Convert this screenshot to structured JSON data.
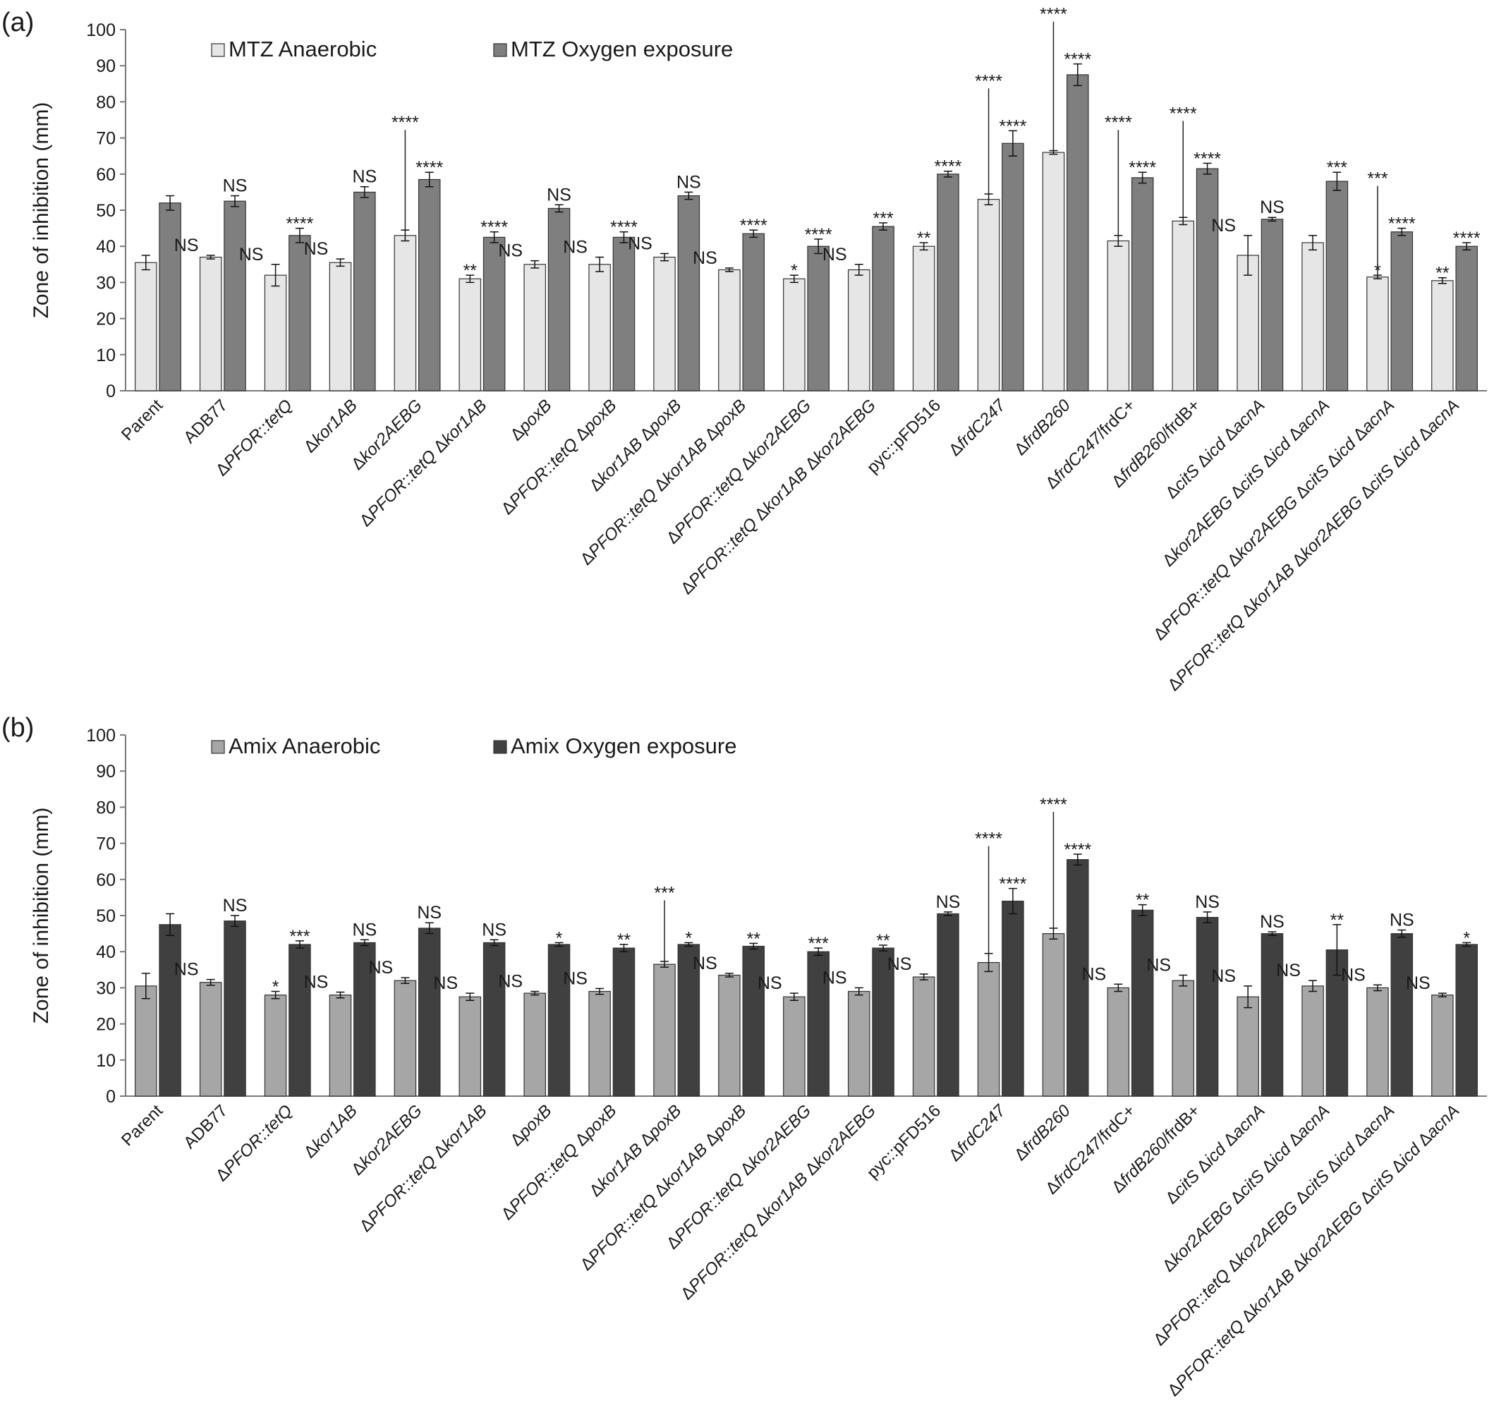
{
  "chart_data": [
    {
      "panel": "(a)",
      "type": "bar",
      "ylabel": "Zone of inhibition (mm)",
      "ylim": [
        0,
        100
      ],
      "yticks": [
        "0",
        "10",
        "20",
        "30",
        "40",
        "50",
        "60",
        "70",
        "80",
        "90",
        "100"
      ],
      "grid": false,
      "legend_position": "top",
      "categories": [
        "Parent",
        "ADB77",
        "ΔPFOR::tetQ",
        "Δkor1AB",
        "Δkor2AEBG",
        "ΔPFOR::tetQ  Δkor1AB",
        "ΔpoxB",
        "ΔPFOR::tetQ  ΔpoxB",
        "Δkor1AB ΔpoxB",
        "ΔPFOR::tetQ  Δkor1AB ΔpoxB",
        "ΔPFOR::tetQ  Δkor2AEBG",
        "ΔPFOR::tetQ  Δkor1AB Δkor2AEBG",
        "pyc::pFD516",
        "ΔfrdC247",
        "ΔfrdB260",
        "ΔfrdC247/frdC+",
        "ΔfrdB260/frdB+",
        "ΔcitS Δicd ΔacnA",
        "Δkor2AEBG ΔcitS Δicd ΔacnA",
        "ΔPFOR::tetQ Δkor2AEBG ΔcitS Δicd ΔacnA",
        "ΔPFOR::tetQ Δkor1AB Δkor2AEBG ΔcitS Δicd ΔacnA"
      ],
      "series": [
        {
          "name": "MTZ Anaerobic",
          "color": "#e6e6e6",
          "values": [
            35.5,
            37,
            32,
            35.5,
            43,
            31,
            35,
            35,
            37,
            33.5,
            31,
            33.5,
            40,
            53,
            66,
            41.5,
            47,
            37.5,
            41,
            31.5,
            30.5
          ],
          "errors": [
            2,
            0.5,
            3,
            1,
            1.5,
            1,
            1,
            2,
            1,
            0.5,
            1,
            1.5,
            1,
            1.5,
            0.5,
            1.5,
            1,
            5.5,
            2,
            0.5,
            0.8
          ],
          "labels": [
            "",
            "NS",
            "NS",
            "NS",
            "",
            "**",
            "NS",
            "NS",
            "NS",
            "NS",
            "*",
            "NS",
            "**",
            "",
            "",
            "",
            "",
            "NS",
            "",
            "*",
            "**"
          ]
        },
        {
          "name": "MTZ Oxygen exposure",
          "color": "#7f7f7f",
          "values": [
            52,
            52.5,
            43,
            55,
            58.5,
            42.5,
            50.5,
            42.5,
            54,
            43.5,
            40,
            45.5,
            60,
            68.5,
            87.5,
            59,
            61.5,
            47.5,
            58,
            44,
            40
          ],
          "errors": [
            2,
            1.5,
            2,
            1.5,
            2,
            1.5,
            1,
            1.5,
            1,
            1,
            2,
            1,
            0.8,
            3.5,
            3,
            1.5,
            1.5,
            0.5,
            2.5,
            1,
            1
          ],
          "labels": [
            "",
            "NS",
            "****",
            "NS",
            "****",
            "****",
            "NS",
            "****",
            "NS",
            "****",
            "****",
            "***",
            "****",
            "****",
            "****",
            "****",
            "****",
            "NS",
            "***",
            "****",
            "****"
          ]
        }
      ],
      "brackets": [
        {
          "category": "Δkor2AEBG",
          "label": "****"
        },
        {
          "category": "ΔfrdC247",
          "label": "****"
        },
        {
          "category": "ΔfrdB260",
          "label": "****"
        },
        {
          "category": "ΔfrdC247/frdC+",
          "label": "****"
        },
        {
          "category": "ΔfrdB260/frdB+",
          "label": "****"
        },
        {
          "category": "ΔPFOR::tetQ Δkor2AEBG ΔcitS Δicd ΔacnA",
          "label": "***"
        }
      ]
    },
    {
      "panel": "(b)",
      "type": "bar",
      "ylabel": "Zone of inhibition (mm)",
      "ylim": [
        0,
        100
      ],
      "yticks": [
        "0",
        "10",
        "20",
        "30",
        "40",
        "50",
        "60",
        "70",
        "80",
        "90",
        "100"
      ],
      "grid": false,
      "legend_position": "top",
      "categories": [
        "Parent",
        "ADB77",
        "ΔPFOR::tetQ",
        "Δkor1AB",
        "Δkor2AEBG",
        "ΔPFOR::tetQ  Δkor1AB",
        "ΔpoxB",
        "ΔPFOR::tetQ  ΔpoxB",
        "Δkor1AB ΔpoxB",
        "ΔPFOR::tetQ  Δkor1AB ΔpoxB",
        "ΔPFOR::tetQ  Δkor2AEBG",
        "ΔPFOR::tetQ  Δkor1AB Δkor2AEBG",
        "pyc::pFD516",
        "ΔfrdC247",
        "ΔfrdB260",
        "ΔfrdC247/frdC+",
        "ΔfrdB260/frdB+",
        "ΔcitS Δicd ΔacnA",
        "Δkor2AEBG ΔcitS Δicd ΔacnA",
        "ΔPFOR::tetQ Δkor2AEBG ΔcitS Δicd ΔacnA",
        "ΔPFOR::tetQ Δkor1AB Δkor2AEBG ΔcitS Δicd ΔacnA"
      ],
      "series": [
        {
          "name": "Amix Anaerobic",
          "color": "#a6a6a6",
          "values": [
            30.5,
            31.5,
            28,
            28,
            32,
            27.5,
            28.5,
            29,
            36.5,
            33.5,
            27.5,
            29,
            33,
            37,
            45,
            30,
            32,
            27.5,
            30.5,
            30,
            28
          ],
          "errors": [
            3.5,
            0.8,
            1,
            0.8,
            0.8,
            1,
            0.5,
            0.8,
            0.8,
            0.5,
            1,
            1,
            0.8,
            2.5,
            1.5,
            1,
            1.5,
            3,
            1.5,
            0.8,
            0.5
          ],
          "labels": [
            "",
            "NS",
            "*",
            "NS",
            "NS",
            "NS",
            "NS",
            "NS",
            "",
            "NS",
            "NS",
            "NS",
            "NS",
            "",
            "",
            "NS",
            "NS",
            "NS",
            "NS",
            "NS",
            "NS"
          ]
        },
        {
          "name": "Amix Oxygen exposure",
          "color": "#404040",
          "values": [
            47.5,
            48.5,
            42,
            42.5,
            46.5,
            42.5,
            42,
            41,
            42,
            41.5,
            40,
            41,
            50.5,
            54,
            65.5,
            51.5,
            49.5,
            45,
            40.5,
            45,
            42
          ],
          "errors": [
            3,
            1.5,
            1,
            0.8,
            1.5,
            0.8,
            0.5,
            1,
            0.5,
            0.8,
            1,
            0.8,
            0.5,
            3.5,
            1.5,
            1.5,
            1.5,
            0.5,
            7,
            1,
            0.5
          ],
          "labels": [
            "",
            "NS",
            "***",
            "NS",
            "NS",
            "NS",
            "*",
            "**",
            "*",
            "**",
            "***",
            "**",
            "NS",
            "****",
            "****",
            "**",
            "NS",
            "NS",
            "**",
            "NS",
            "*"
          ]
        }
      ],
      "brackets": [
        {
          "category": "Δkor1AB ΔpoxB",
          "label": "***"
        },
        {
          "category": "ΔfrdC247",
          "label": "****"
        },
        {
          "category": "ΔfrdB260",
          "label": "****"
        }
      ]
    }
  ]
}
